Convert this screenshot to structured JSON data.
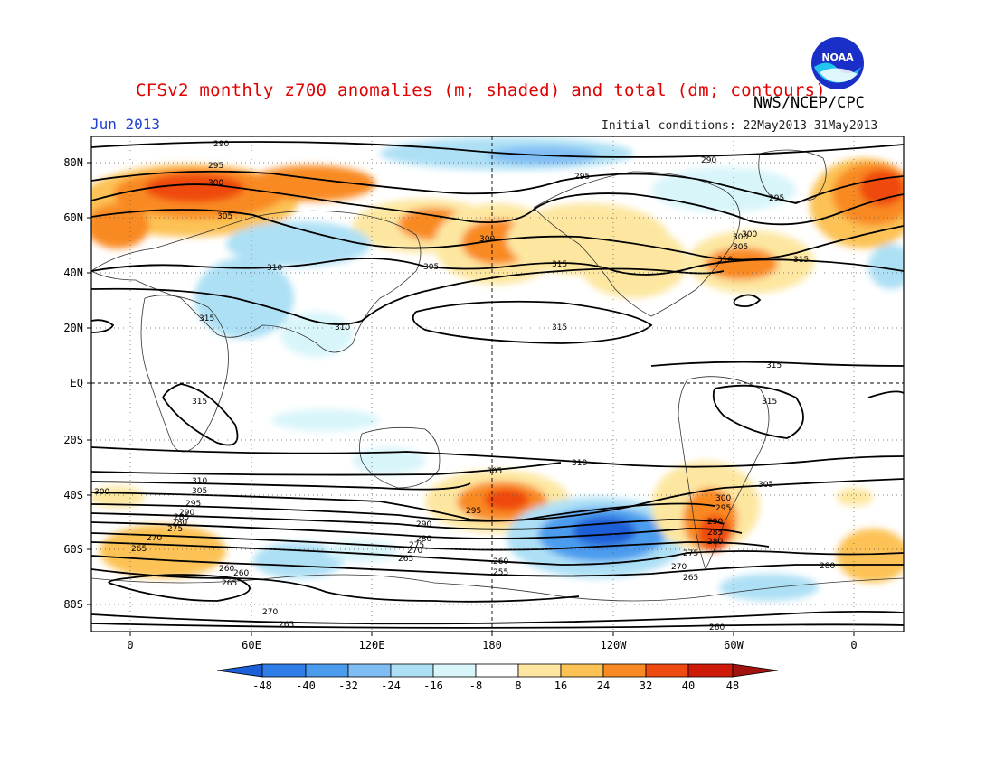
{
  "title": "CFSv2 monthly z700 anomalies (m; shaded) and total (dm; contours)",
  "organization": "NWS/NCEP/CPC",
  "logo_text": "NOAA",
  "valid_month": "Jun 2013",
  "initial_conditions": "Initial conditions: 22May2013-31May2013",
  "lat_labels": [
    "80N",
    "60N",
    "40N",
    "20N",
    "EQ",
    "20S",
    "40S",
    "60S",
    "80S"
  ],
  "lon_labels": [
    "0",
    "60E",
    "120E",
    "180",
    "120W",
    "60W",
    "0"
  ],
  "colorbar": {
    "labels": [
      "-48",
      "-40",
      "-32",
      "-24",
      "-16",
      "-8",
      "8",
      "16",
      "24",
      "32",
      "40",
      "48"
    ],
    "colors": [
      "#1c5fd8",
      "#2f7de6",
      "#4c9cee",
      "#7fbdf5",
      "#ade0f5",
      "#d8f5fa",
      "#ffffff",
      "#fde7a0",
      "#fcc255",
      "#f98a23",
      "#ef4a10",
      "#cf1a0a",
      "#a3120e"
    ]
  },
  "contour_labels": [
    {
      "text": "290"
    },
    {
      "text": "295"
    },
    {
      "text": "300"
    },
    {
      "text": "305"
    },
    {
      "text": "310"
    },
    {
      "text": "315"
    },
    {
      "text": "295"
    },
    {
      "text": "300"
    },
    {
      "text": "305"
    },
    {
      "text": "315"
    },
    {
      "text": "300"
    },
    {
      "text": "315"
    },
    {
      "text": "290"
    },
    {
      "text": "295"
    },
    {
      "text": "300"
    },
    {
      "text": "305"
    },
    {
      "text": "310"
    },
    {
      "text": "315"
    },
    {
      "text": "310"
    },
    {
      "text": "315"
    },
    {
      "text": "315"
    },
    {
      "text": "315"
    },
    {
      "text": "310"
    },
    {
      "text": "305"
    },
    {
      "text": "300"
    },
    {
      "text": "295"
    },
    {
      "text": "290"
    },
    {
      "text": "285"
    },
    {
      "text": "280"
    },
    {
      "text": "275"
    },
    {
      "text": "270"
    },
    {
      "text": "265"
    },
    {
      "text": "260"
    },
    {
      "text": "265"
    },
    {
      "text": "260"
    },
    {
      "text": "255"
    },
    {
      "text": "270"
    },
    {
      "text": "265"
    },
    {
      "text": "310"
    },
    {
      "text": "305"
    },
    {
      "text": "295"
    },
    {
      "text": "290"
    },
    {
      "text": "280"
    },
    {
      "text": "275"
    },
    {
      "text": "270"
    },
    {
      "text": "265"
    },
    {
      "text": "260"
    },
    {
      "text": "280"
    },
    {
      "text": "260"
    },
    {
      "text": "305"
    },
    {
      "text": "300"
    },
    {
      "text": "295"
    },
    {
      "text": "290"
    },
    {
      "text": "285"
    },
    {
      "text": "280"
    },
    {
      "text": "275"
    },
    {
      "text": "270"
    },
    {
      "text": "265"
    }
  ]
}
